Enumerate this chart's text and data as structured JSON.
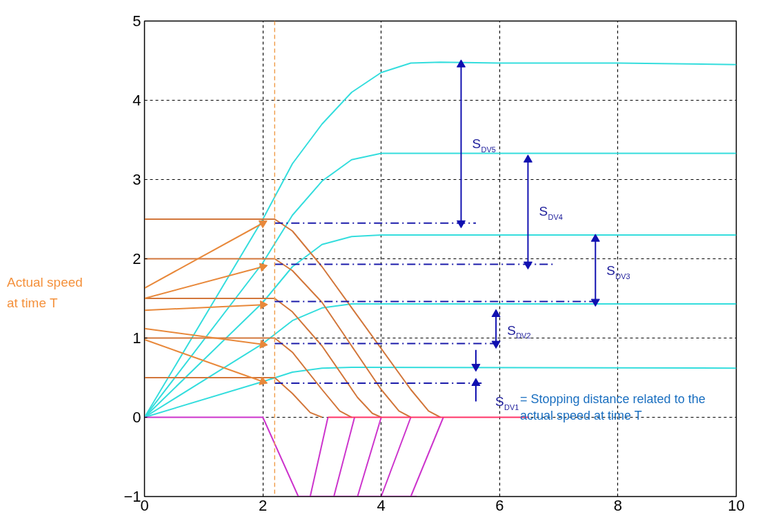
{
  "chart_data": {
    "type": "line",
    "xlim": [
      0,
      10
    ],
    "ylim": [
      -1,
      5
    ],
    "xticks": [
      0,
      2,
      4,
      6,
      8,
      10
    ],
    "yticks": [
      -1,
      0,
      1,
      2,
      3,
      4,
      5
    ],
    "grid": true,
    "marker": "none",
    "line_style": "solid",
    "series": [
      {
        "color": "#33dddd",
        "x": [
          0,
          2,
          2.5,
          3,
          3.5,
          4,
          4.5,
          5,
          6,
          8,
          10
        ],
        "values": [
          0,
          2.5,
          3.2,
          3.7,
          4.1,
          4.35,
          4.47,
          4.48,
          4.47,
          4.47,
          4.45
        ]
      },
      {
        "color": "#33dddd",
        "x": [
          0,
          2,
          2.5,
          3,
          3.5,
          4,
          6,
          10
        ],
        "values": [
          0,
          1.95,
          2.55,
          2.98,
          3.25,
          3.33,
          3.33,
          3.33
        ]
      },
      {
        "color": "#33dddd",
        "x": [
          0,
          2,
          2.5,
          3,
          3.5,
          4,
          10
        ],
        "values": [
          0,
          1.45,
          1.9,
          2.18,
          2.28,
          2.3,
          2.3
        ]
      },
      {
        "color": "#33dddd",
        "x": [
          0,
          2,
          2.5,
          3,
          3.5,
          10
        ],
        "values": [
          0,
          0.93,
          1.22,
          1.38,
          1.43,
          1.43
        ]
      },
      {
        "color": "#33dddd",
        "x": [
          0,
          2,
          2.5,
          3,
          3.5,
          10
        ],
        "values": [
          0,
          0.45,
          0.57,
          0.62,
          0.63,
          0.62
        ]
      },
      {
        "color": "#d2763a",
        "x": [
          0,
          2.2,
          2.5,
          3,
          4.5,
          4.8,
          5
        ],
        "values": [
          2.5,
          2.5,
          2.35,
          1.9,
          0.35,
          0.08,
          0
        ]
      },
      {
        "color": "#d2763a",
        "x": [
          0,
          2.2,
          2.5,
          3,
          4,
          4.3,
          4.5
        ],
        "values": [
          2,
          2,
          1.85,
          1.45,
          0.35,
          0.08,
          0
        ]
      },
      {
        "color": "#d2763a",
        "x": [
          0,
          2.2,
          2.5,
          3,
          3.6,
          3.85,
          4
        ],
        "values": [
          1.5,
          1.5,
          1.33,
          0.9,
          0.25,
          0.05,
          0
        ]
      },
      {
        "color": "#d2763a",
        "x": [
          0,
          2.2,
          2.5,
          3,
          3.3,
          3.5
        ],
        "values": [
          1,
          1,
          0.82,
          0.35,
          0.08,
          0
        ]
      },
      {
        "color": "#d2763a",
        "x": [
          0,
          2.2,
          2.5,
          2.8,
          3.0
        ],
        "values": [
          0.5,
          0.5,
          0.3,
          0.06,
          0
        ]
      },
      {
        "color": "#cc33cc",
        "x": [
          0,
          2,
          2.6,
          4.6
        ],
        "values": [
          0,
          0,
          -1,
          -1
        ]
      },
      {
        "color": "#cc33cc",
        "x": [
          2.8,
          3.1
        ],
        "values": [
          -1,
          0
        ]
      },
      {
        "color": "#cc33cc",
        "x": [
          3.2,
          3.55
        ],
        "values": [
          -1,
          0
        ]
      },
      {
        "color": "#cc33cc",
        "x": [
          3.6,
          4.0
        ],
        "values": [
          -1,
          0
        ]
      },
      {
        "color": "#cc33cc",
        "x": [
          4.0,
          4.5
        ],
        "values": [
          -1,
          0
        ]
      },
      {
        "color": "#cc33cc",
        "x": [
          4.5,
          5.05
        ],
        "values": [
          -1,
          0
        ]
      },
      {
        "color": "#ff3366",
        "x": [
          3.1,
          6.5
        ],
        "values": [
          0,
          0
        ]
      },
      {
        "color": "#1a1aaa",
        "line_style": "dashed",
        "x": [
          2.2,
          5.6
        ],
        "values": [
          2.45,
          2.45
        ]
      },
      {
        "color": "#1a1aaa",
        "line_style": "dashed",
        "x": [
          2.2,
          6.9
        ],
        "values": [
          1.93,
          1.93
        ]
      },
      {
        "color": "#1a1aaa",
        "line_style": "dashed",
        "x": [
          2.2,
          7.6
        ],
        "values": [
          1.46,
          1.46
        ]
      },
      {
        "color": "#1a1aaa",
        "line_style": "dashed",
        "x": [
          2.2,
          6.0
        ],
        "values": [
          0.93,
          0.93
        ]
      },
      {
        "color": "#1a1aaa",
        "line_style": "dashed",
        "x": [
          2.2,
          5.7
        ],
        "values": [
          0.43,
          0.43
        ]
      },
      {
        "color": "#1010b0",
        "marker": "triangle",
        "x": [
          5.35,
          5.35,
          5.35
        ],
        "values": [
          3.45,
          4.45,
          2.45
        ]
      },
      {
        "color": "#1010b0",
        "marker": "triangle",
        "x": [
          6.48,
          6.48,
          6.48
        ],
        "values": [
          2.6,
          3.25,
          1.93
        ]
      },
      {
        "color": "#1010b0",
        "marker": "triangle",
        "x": [
          7.62,
          7.62,
          7.62
        ],
        "values": [
          1.85,
          2.25,
          1.46
        ]
      },
      {
        "color": "#1010b0",
        "marker": "triangle",
        "x": [
          5.94,
          5.94,
          5.94
        ],
        "values": [
          1.1,
          1.3,
          0.93
        ]
      },
      {
        "color": "#1010b0",
        "marker": "triangle",
        "x": [
          5.6,
          5.6
        ],
        "values": [
          0.85,
          0.64
        ]
      },
      {
        "color": "#1010b0",
        "marker": "triangle",
        "x": [
          5.6,
          5.6
        ],
        "values": [
          0.2,
          0.43
        ]
      },
      {
        "color": "#e8883a",
        "marker": "triangle",
        "x": [
          0,
          2
        ],
        "values": [
          1.63,
          2.45
        ]
      },
      {
        "color": "#e8883a",
        "marker": "triangle",
        "x": [
          0,
          2
        ],
        "values": [
          1.5,
          1.9
        ]
      },
      {
        "color": "#e8883a",
        "marker": "triangle",
        "x": [
          0,
          2
        ],
        "values": [
          1.35,
          1.42
        ]
      },
      {
        "color": "#e8883a",
        "marker": "triangle",
        "x": [
          0,
          2
        ],
        "values": [
          1.12,
          0.92
        ]
      },
      {
        "color": "#e8883a",
        "marker": "triangle",
        "x": [
          0,
          2
        ],
        "values": [
          0.98,
          0.45
        ]
      }
    ],
    "ref_lines": [
      {
        "axis": "x",
        "value": 2.2,
        "color": "#f0a050",
        "line_style": "dashed"
      }
    ],
    "annotations": [
      "Actual speed at time T",
      {
        "text": "S$_{DV5}$",
        "x": 5.35,
        "y": 3.45
      },
      {
        "text": "S$_{DV4}$",
        "x": 6.48,
        "y": 2.6
      },
      {
        "text": "S$_{DV3}$",
        "x": 7.62,
        "y": 1.85
      },
      {
        "text": "S$_{DV2}$",
        "x": 5.94,
        "y": 1.1
      },
      {
        "text": "S$_{DV1}$= Stopping distance related to the actual speed at time T",
        "x": 5.6,
        "y": 0.2
      }
    ]
  }
}
